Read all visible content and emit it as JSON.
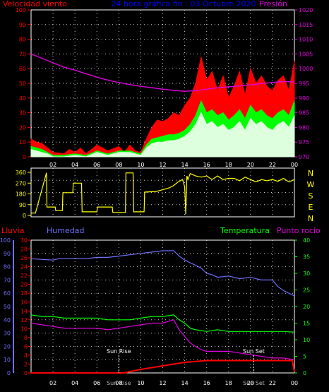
{
  "colors": {
    "wind_gust": "#ff0000",
    "wind_avg": "#00ff00",
    "wind_min": "#ddffdd",
    "pressure": "#e000e0",
    "direction": "#ffff00",
    "rain": "#ff0000",
    "humidity": "#7070ff",
    "temperature": "#00ff00",
    "dewpoint": "#e000e0",
    "frame": "#ffffff",
    "grid": "#cccccc",
    "title": "#0000ff"
  },
  "chart_data": [
    {
      "type": "line",
      "title": "24 hora gráfica fin : 03 Octubre 2020",
      "left_axis_label": "Velocidad viento",
      "right_axis_label": "Presión",
      "x_ticks": [
        "02",
        "04",
        "06",
        "08",
        "10",
        "12",
        "14",
        "16",
        "18",
        "20",
        "22",
        "00"
      ],
      "left_ticks": [
        "0",
        "10",
        "20",
        "30",
        "40",
        "50",
        "60",
        "70",
        "80",
        "90",
        "100"
      ],
      "right_ticks": [
        "970",
        "975",
        "980",
        "985",
        "990",
        "995",
        "1000",
        "1005",
        "1010",
        "1015",
        "1020"
      ],
      "ylim_left": [
        0,
        100
      ],
      "ylim_right": [
        970,
        1020
      ],
      "xlim": [
        0,
        24
      ],
      "grid": true,
      "series": [
        {
          "key": "gust",
          "color_key": "wind_gust",
          "x": [
            0,
            0.5,
            1,
            1.5,
            2,
            3,
            3.5,
            4,
            4.5,
            5,
            6,
            7,
            8,
            8.5,
            9,
            9.5,
            10,
            10.5,
            11,
            11.5,
            12,
            12.5,
            13,
            13.5,
            14,
            14.5,
            15,
            15.5,
            16,
            16.5,
            17,
            17.5,
            18,
            18.5,
            19,
            19.5,
            20,
            20.5,
            21,
            21.5,
            22,
            22.5,
            23,
            23.5,
            24
          ],
          "y": [
            12,
            10,
            9,
            6,
            3,
            2,
            5,
            3,
            6,
            2,
            8,
            4,
            7,
            3,
            8,
            4,
            3,
            12,
            20,
            25,
            24,
            26,
            30,
            28,
            35,
            40,
            50,
            68,
            52,
            58,
            45,
            55,
            40,
            48,
            58,
            42,
            60,
            50,
            55,
            48,
            45,
            52,
            55,
            45,
            65
          ]
        },
        {
          "key": "avg",
          "color_key": "wind_avg",
          "x": [
            0,
            0.5,
            1,
            1.5,
            2,
            3,
            4,
            5,
            6,
            7,
            8,
            9,
            10,
            10.5,
            11,
            11.5,
            12,
            12.5,
            13,
            13.5,
            14,
            14.5,
            15,
            15.5,
            16,
            16.5,
            17,
            17.5,
            18,
            18.5,
            19,
            19.5,
            20,
            20.5,
            21,
            21.5,
            22,
            22.5,
            23,
            23.5,
            24
          ],
          "y": [
            7,
            6,
            5,
            3,
            1,
            1,
            2,
            1,
            4,
            2,
            4,
            4,
            2,
            8,
            12,
            13,
            14,
            15,
            15,
            16,
            18,
            22,
            28,
            38,
            30,
            32,
            28,
            30,
            25,
            28,
            32,
            26,
            35,
            30,
            32,
            28,
            26,
            30,
            32,
            28,
            38
          ]
        },
        {
          "key": "min",
          "color_key": "wind_min",
          "x": [
            0,
            0.5,
            1,
            1.5,
            2,
            3,
            4,
            5,
            6,
            7,
            8,
            9,
            10,
            10.5,
            11,
            11.5,
            12,
            12.5,
            13,
            13.5,
            14,
            14.5,
            15,
            15.5,
            16,
            16.5,
            17,
            17.5,
            18,
            18.5,
            19,
            19.5,
            20,
            20.5,
            21,
            21.5,
            22,
            22.5,
            23,
            23.5,
            24
          ],
          "y": [
            5,
            4,
            3,
            2,
            0,
            0,
            1,
            0,
            3,
            1,
            3,
            3,
            1,
            6,
            9,
            10,
            10,
            11,
            11,
            12,
            14,
            17,
            22,
            30,
            22,
            24,
            20,
            22,
            18,
            20,
            24,
            18,
            26,
            22,
            24,
            20,
            18,
            22,
            24,
            20,
            28
          ]
        },
        {
          "key": "pressure",
          "color_key": "pressure",
          "axis": "right",
          "x": [
            0,
            1,
            2,
            3,
            4,
            5,
            6,
            7,
            8,
            9,
            10,
            11,
            12,
            13,
            14,
            15,
            16,
            17,
            18,
            19,
            20,
            21,
            22,
            23,
            24
          ],
          "y": [
            1005,
            1003.5,
            1002,
            1000.5,
            999.5,
            998.3,
            997.1,
            996.1,
            995.3,
            994.6,
            994,
            993.5,
            993,
            992.6,
            992.3,
            992.5,
            993,
            993.5,
            993.8,
            994.1,
            994.5,
            994.9,
            995.3,
            995.6,
            995.5
          ]
        }
      ]
    },
    {
      "type": "line",
      "right_labels": [
        "N",
        "W",
        "S",
        "E",
        "N"
      ],
      "left_ticks": [
        "0",
        "90",
        "180",
        "270",
        "360"
      ],
      "ylim": [
        0,
        360
      ],
      "xlim": [
        0,
        24
      ],
      "grid": true,
      "series": [
        {
          "key": "direction",
          "color_key": "direction",
          "x": [
            0,
            0.4,
            1.4,
            1.45,
            2.2,
            2.25,
            2.85,
            2.9,
            3.8,
            3.85,
            4.6,
            4.65,
            6.0,
            6.05,
            7.4,
            7.45,
            8.6,
            8.65,
            9.3,
            9.35,
            10.3,
            10.35,
            11.4,
            11.8,
            12.2,
            12.6,
            13.0,
            13.4,
            13.8,
            14.0,
            14.1,
            14.2,
            14.3,
            14.5,
            15.0,
            15.5,
            16.0,
            16.5,
            17.0,
            17.5,
            18.0,
            18.5,
            19.0,
            19.5,
            20.0,
            20.5,
            21.0,
            21.5,
            22.0,
            22.5,
            23.0,
            23.5,
            24.0
          ],
          "y": [
            20,
            20,
            355,
            70,
            70,
            40,
            40,
            190,
            190,
            270,
            270,
            30,
            30,
            70,
            70,
            25,
            25,
            355,
            355,
            30,
            30,
            195,
            200,
            210,
            220,
            230,
            250,
            280,
            300,
            240,
            10,
            330,
            300,
            350,
            330,
            320,
            330,
            300,
            330,
            300,
            310,
            310,
            290,
            320,
            300,
            280,
            300,
            290,
            300,
            285,
            310,
            280,
            300
          ]
        }
      ]
    },
    {
      "type": "line",
      "axis_labels": {
        "rain": "Lluvia",
        "humidity": "Humedad",
        "temperature": "Temperatura",
        "dewpoint": "Punto rocío"
      },
      "humidity_ticks": [
        "0",
        "10",
        "20",
        "30",
        "40",
        "50",
        "60",
        "70",
        "80",
        "90",
        "100"
      ],
      "rain_ticks": [
        "0",
        "2",
        "4",
        "6",
        "8",
        "10",
        "12",
        "14",
        "16",
        "18",
        "20",
        "22",
        "24",
        "26",
        "28",
        "30"
      ],
      "temp_ticks": [
        "0",
        "5",
        "10",
        "15",
        "20",
        "25",
        "30",
        "35",
        "40"
      ],
      "x_ticks": [
        "02",
        "04",
        "06",
        "08",
        "10",
        "12",
        "14",
        "16",
        "18",
        "20",
        "22",
        "00"
      ],
      "ylim_humidity": [
        0,
        100
      ],
      "ylim_rain": [
        0,
        30
      ],
      "ylim_temp": [
        0,
        40
      ],
      "xlim": [
        0,
        24
      ],
      "grid": true,
      "annotations": [
        {
          "label": "Sun Rise",
          "sub": "Sun Rise",
          "x": 8.0
        },
        {
          "label": "Sun Set",
          "sub": "Sun Set",
          "x": 20.3
        }
      ],
      "series": [
        {
          "key": "humidity",
          "color_key": "humidity",
          "axis": "humidity",
          "x": [
            0,
            2,
            2.5,
            4,
            5,
            6,
            7,
            8,
            9,
            10,
            11,
            12,
            13,
            13.5,
            14,
            14.5,
            15,
            15.5,
            16,
            16.5,
            17,
            18,
            19,
            20,
            21,
            22,
            22.5,
            23,
            23.5,
            24
          ],
          "y": [
            86,
            85,
            86,
            86,
            86,
            87,
            87,
            88,
            89,
            90,
            91,
            92,
            92,
            88,
            85,
            83,
            81,
            79,
            75,
            74,
            72,
            73,
            71,
            72,
            70,
            70,
            65,
            62,
            60,
            58
          ]
        },
        {
          "key": "temperature",
          "color_key": "temperature",
          "axis": "temp",
          "x": [
            0,
            1,
            2,
            3,
            4,
            5,
            6,
            7,
            8,
            9,
            10,
            11,
            12,
            13,
            13.5,
            14,
            14.5,
            15,
            16,
            17,
            18,
            19,
            20,
            21,
            22,
            23,
            24
          ],
          "y": [
            17.5,
            17,
            17,
            16.5,
            16.5,
            16.5,
            16.5,
            16,
            16,
            16,
            16.5,
            17,
            17,
            17.5,
            16,
            15,
            13.5,
            13,
            12.5,
            13,
            12.5,
            12.5,
            12.5,
            12.5,
            12.5,
            12.5,
            12.3
          ]
        },
        {
          "key": "dewpoint",
          "color_key": "dewpoint",
          "axis": "temp",
          "x": [
            0,
            1,
            2,
            3,
            4,
            5,
            6,
            7,
            8,
            9,
            10,
            11,
            12,
            13,
            13.5,
            14,
            14.5,
            15,
            15.5,
            16,
            17,
            18,
            19,
            20,
            21,
            22,
            23,
            24
          ],
          "y": [
            15,
            14.5,
            14,
            13.5,
            13.5,
            13.5,
            13.5,
            13,
            13.5,
            14,
            14.5,
            15,
            15,
            16,
            13,
            11,
            9,
            8,
            7,
            6.5,
            6.5,
            6.5,
            6,
            5.5,
            5,
            4.5,
            4.5,
            4
          ]
        },
        {
          "key": "rain",
          "color_key": "rain",
          "axis": "rain",
          "x": [
            0,
            8.5,
            9,
            10,
            11,
            12,
            13,
            14,
            15,
            16,
            17,
            18,
            19,
            20,
            21,
            22,
            23,
            23.8,
            24
          ],
          "y": [
            0,
            0,
            0.3,
            0.8,
            1.2,
            1.6,
            2.0,
            2.4,
            2.6,
            2.8,
            2.8,
            2.8,
            2.8,
            2.8,
            2.8,
            2.8,
            2.8,
            2.8,
            0.2
          ]
        }
      ]
    }
  ]
}
